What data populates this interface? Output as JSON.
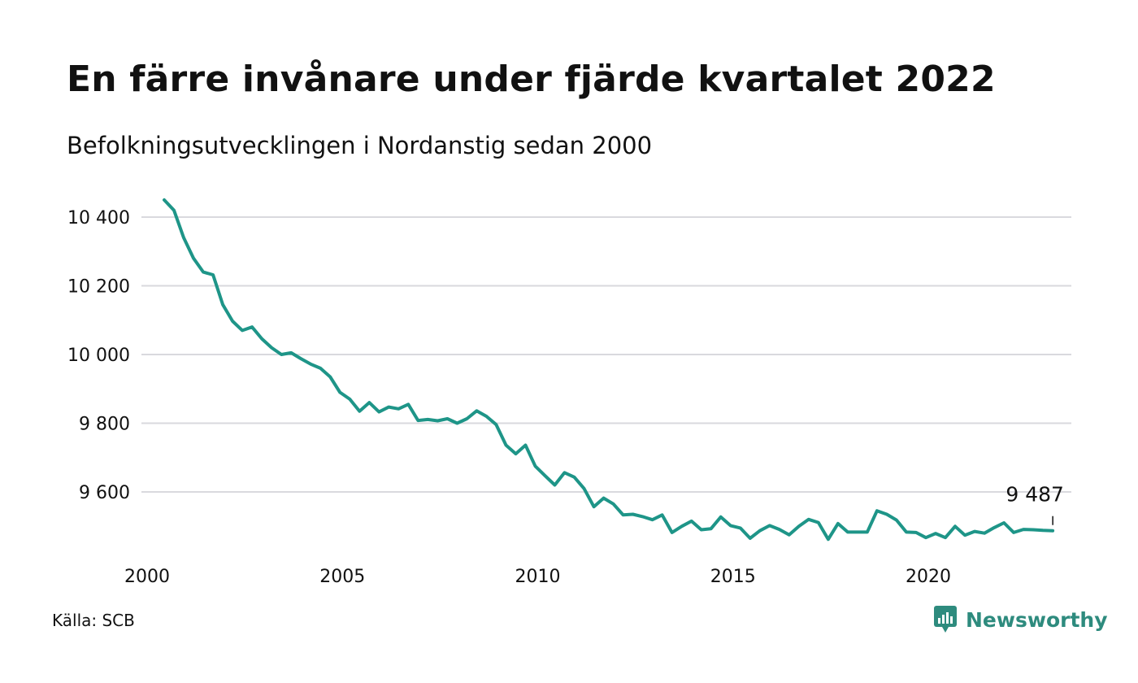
{
  "header": {
    "title": "En färre invånare under fjärde kvartalet 2022",
    "subtitle": "Befolkningsutvecklingen i Nordanstig sedan 2000"
  },
  "footer": {
    "source": "Källa: SCB",
    "brand": "Newsworthy"
  },
  "colors": {
    "line": "#1e9588",
    "grid": "#d9d9de",
    "brand": "#2e8b7e"
  },
  "chart_data": {
    "type": "line",
    "title": "En färre invånare under fjärde kvartalet 2022",
    "subtitle": "Befolkningsutvecklingen i Nordanstig sedan 2000",
    "xlim": [
      2000,
      2023
    ],
    "ylim": [
      9430,
      10460
    ],
    "x_ticks": [
      {
        "value": 2000,
        "label": "2000"
      },
      {
        "value": 2005,
        "label": "2005"
      },
      {
        "value": 2010,
        "label": "2010"
      },
      {
        "value": 2015,
        "label": "2015"
      },
      {
        "value": 2020,
        "label": "2020"
      }
    ],
    "y_ticks": [
      {
        "value": 9600,
        "label": "9 600"
      },
      {
        "value": 9800,
        "label": "9 800"
      },
      {
        "value": 10000,
        "label": "10 000"
      },
      {
        "value": 10200,
        "label": "10 200"
      },
      {
        "value": 10400,
        "label": "10 400"
      }
    ],
    "grid": true,
    "end_label": "9 487",
    "series": [
      {
        "x": [
          2000.25,
          2000.5,
          2000.75,
          2001.0,
          2001.25,
          2001.5,
          2001.75,
          2002.0,
          2002.25,
          2002.5,
          2002.75,
          2003.0,
          2003.25,
          2003.5,
          2003.75,
          2004.0,
          2004.25,
          2004.5,
          2004.75,
          2005.0,
          2005.25,
          2005.5,
          2005.75,
          2006.0,
          2006.25,
          2006.5,
          2006.75,
          2007.0,
          2007.25,
          2007.5,
          2007.75,
          2008.0,
          2008.25,
          2008.5,
          2008.75,
          2009.0,
          2009.25,
          2009.5,
          2009.75,
          2010.0,
          2010.25,
          2010.5,
          2010.75,
          2011.0,
          2011.25,
          2011.5,
          2011.75,
          2012.0,
          2012.25,
          2012.5,
          2012.75,
          2013.0,
          2013.25,
          2013.5,
          2013.75,
          2014.0,
          2014.25,
          2014.5,
          2014.75,
          2015.0,
          2015.25,
          2015.5,
          2015.75,
          2016.0,
          2016.25,
          2016.5,
          2016.75,
          2017.0,
          2017.25,
          2017.5,
          2017.75,
          2018.0,
          2018.25,
          2018.5,
          2018.75,
          2019.0,
          2019.25,
          2019.5,
          2019.75,
          2020.0,
          2020.25,
          2020.5,
          2020.75,
          2021.0,
          2021.25,
          2021.5,
          2021.75,
          2022.0,
          2022.25,
          2022.5,
          2022.75,
          2023.0
        ],
        "values": [
          10450,
          10420,
          10340,
          10280,
          10240,
          10232,
          10145,
          10097,
          10070,
          10080,
          10046,
          10020,
          10000,
          10005,
          9988,
          9972,
          9960,
          9935,
          9890,
          9870,
          9835,
          9860,
          9833,
          9847,
          9842,
          9855,
          9808,
          9811,
          9807,
          9813,
          9800,
          9813,
          9836,
          9820,
          9796,
          9736,
          9711,
          9736,
          9675,
          9647,
          9620,
          9656,
          9643,
          9610,
          9557,
          9582,
          9565,
          9533,
          9535,
          9528,
          9519,
          9533,
          9482,
          9500,
          9515,
          9490,
          9493,
          9527,
          9502,
          9495,
          9465,
          9487,
          9502,
          9491,
          9475,
          9500,
          9520,
          9511,
          9462,
          9508,
          9483,
          9483,
          9483,
          9545,
          9535,
          9518,
          9483,
          9482,
          9467,
          9479,
          9467,
          9500,
          9474,
          9485,
          9480,
          9496,
          9510,
          9482,
          9491,
          9490,
          9488,
          9487
        ]
      }
    ]
  }
}
